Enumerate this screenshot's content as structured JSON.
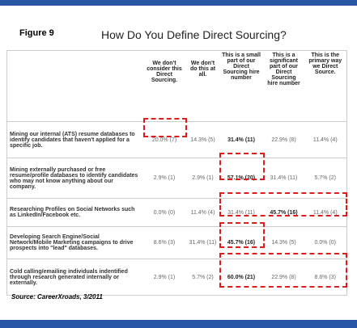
{
  "header": {
    "figure": "Figure 9",
    "title": "How Do You Define Direct Sourcing?"
  },
  "table": {
    "columns": [
      "We don't consider this Direct Sourcing.",
      "We don't do this at all.",
      "This is a small part of our Direct Sourcing hire number",
      "This is a significant part of our Direct Sourcing hire number",
      "This is the primary way we Direct Source."
    ],
    "rows": [
      [
        "Mining our internal (ATS) resume databases to identify candidates that haven't applied for a specific job.",
        "20.0% (7)",
        "14.3% (5)",
        "31.4% (11)",
        "22.9% (8)",
        "11.4% (4)"
      ],
      [
        "Mining externally purchased or free resume/profile databases to identify candidates who may not know anything about our company.",
        "2.9% (1)",
        "2.9% (1)",
        "57.1% (20)",
        "31.4% (11)",
        "5.7% (2)"
      ],
      [
        "Researching Profiles on Social Networks such as LinkedIn/Facebook etc.",
        "0.0% (0)",
        "11.4% (4)",
        "31.4% (11)",
        "45.7% (16)",
        "11.4% (4)"
      ],
      [
        "Developing Search Engine/Social Network/Mobile Marketing campaigns to drive prospects into \"lead\" databases.",
        "8.6% (3)",
        "31.4% (11)",
        "45.7% (16)",
        "14.3% (5)",
        "0.0% (0)"
      ],
      [
        "Cold calling/emailing individuals indentified through research generated internally or externally.",
        "2.9% (1)",
        "5.7% (2)",
        "60.0% (21)",
        "22.9% (8)",
        "8.6% (3)"
      ]
    ]
  },
  "footer": {
    "source": "Source: CareerXroads, 3/2011"
  }
}
